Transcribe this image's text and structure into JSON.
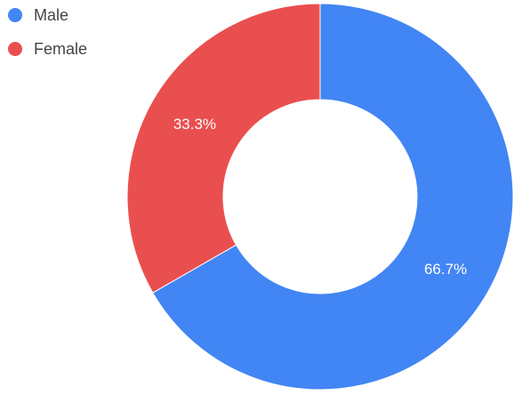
{
  "chart_data": {
    "type": "pie",
    "donut": true,
    "legend_position": "top-left",
    "categories": [
      "Male",
      "Female"
    ],
    "values": [
      66.7,
      33.3
    ],
    "labels": [
      "66.7%",
      "33.3%"
    ],
    "colors": [
      "#4285f4",
      "#ea4f4f"
    ]
  }
}
